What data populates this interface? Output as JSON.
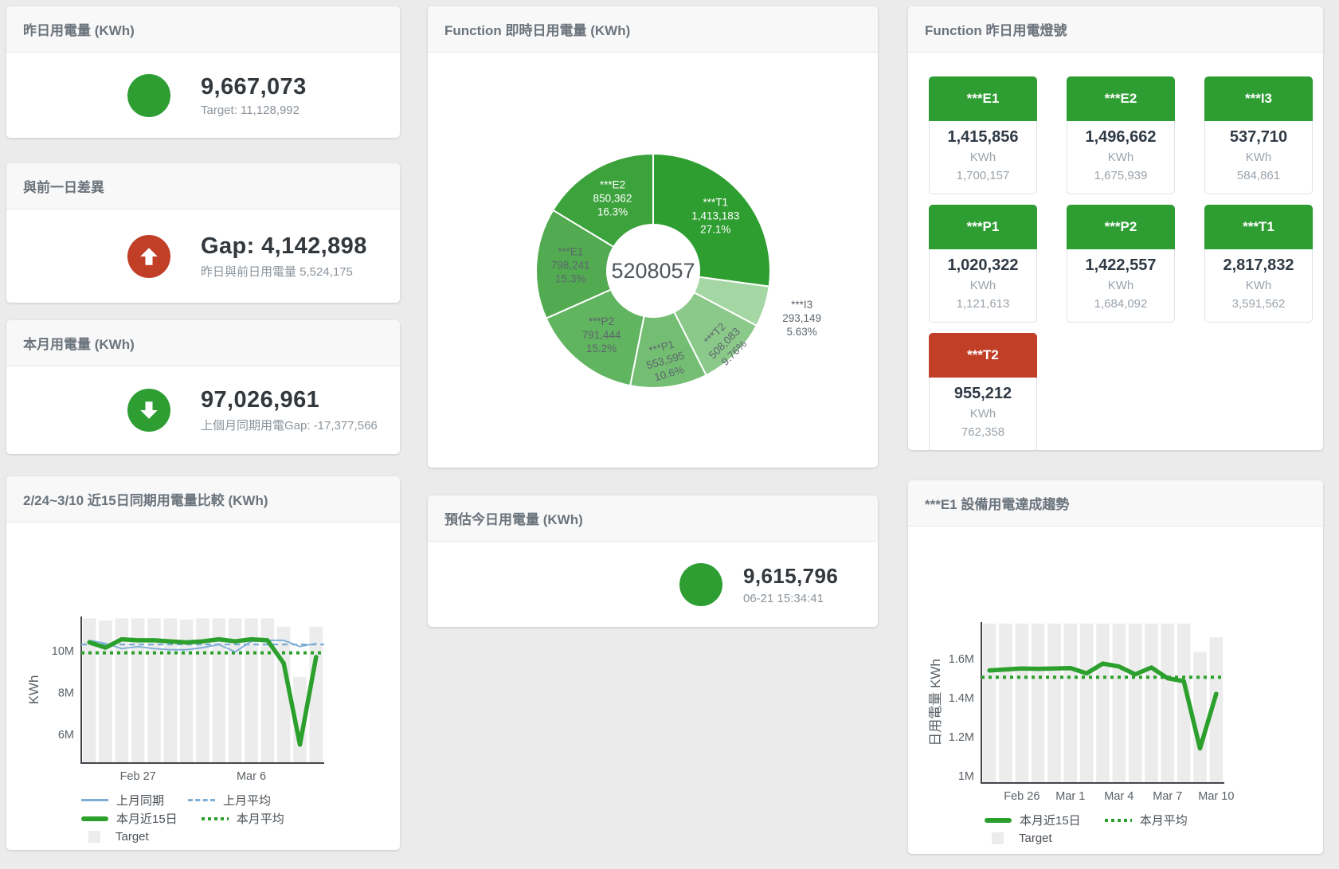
{
  "page": {
    "bg": "#ebebeb"
  },
  "colors": {
    "green": "#2e9e33",
    "red": "#c13e27",
    "blue_line": "#7badd6",
    "chart_green": "#2ca02c",
    "target_bar": "#ececec"
  },
  "cards": {
    "yesterday": {
      "title": "昨日用電量 (KWh)",
      "value": "9,667,073",
      "subtext": "Target: 11,128,992",
      "indicator": "green-circle"
    },
    "diff": {
      "title": "與前一日差異",
      "value": "Gap: 4,142,898",
      "subtext": "昨日與前日用電量 5,524,175",
      "indicator": "red-arrow-up"
    },
    "month": {
      "title": "本月用電量 (KWh)",
      "value": "97,026,961",
      "subtext": "上個月同期用電Gap: -17,377,566",
      "indicator": "green-arrow-down"
    },
    "estimate": {
      "title": "預估今日用電量 (KWh)",
      "value": "9,615,796",
      "subtext": "06-21 15:34:41",
      "indicator": "green-circle"
    },
    "lights": {
      "title": "Function 昨日用電燈號",
      "tiles": [
        {
          "name": "***E1",
          "value": "1,415,856",
          "unit": "KWh",
          "target": "1,700,157",
          "status": "green"
        },
        {
          "name": "***E2",
          "value": "1,496,662",
          "unit": "KWh",
          "target": "1,675,939",
          "status": "green"
        },
        {
          "name": "***I3",
          "value": "537,710",
          "unit": "KWh",
          "target": "584,861",
          "status": "green"
        },
        {
          "name": "***P1",
          "value": "1,020,322",
          "unit": "KWh",
          "target": "1,121,613",
          "status": "green"
        },
        {
          "name": "***P2",
          "value": "1,422,557",
          "unit": "KWh",
          "target": "1,684,092",
          "status": "green"
        },
        {
          "name": "***T1",
          "value": "2,817,832",
          "unit": "KWh",
          "target": "3,591,562",
          "status": "green"
        },
        {
          "name": "***T2",
          "value": "955,212",
          "unit": "KWh",
          "target": "762,358",
          "status": "red"
        }
      ]
    }
  },
  "chart_data": [
    {
      "type": "pie",
      "title": "Function 即時日用電量 (KWh)",
      "center_total": "5208057",
      "legend_position": "none",
      "slices": [
        {
          "label": "***T1",
          "value": 1413183,
          "value_label": "1,413,183",
          "pct": "27.1%",
          "color": "#2f9e31",
          "text_color": "#ffffff",
          "label_radius": 104,
          "rotate": 0
        },
        {
          "label": "***I3",
          "value": 293149,
          "value_label": "293,149",
          "pct": "5.63%",
          "color": "#a5d7a4",
          "text_color": "#5d666d",
          "label_radius": 196,
          "rotate": 0,
          "outside": true
        },
        {
          "label": "***T2",
          "value": 508083,
          "value_label": "508,083",
          "pct": "9.76%",
          "color": "#8bc98a",
          "text_color": "#5d666d",
          "label_radius": 128,
          "rotate": -45
        },
        {
          "label": "***P1",
          "value": 553595,
          "value_label": "553,595",
          "pct": "10.6%",
          "color": "#74be73",
          "text_color": "#5d666d",
          "label_radius": 114,
          "rotate": -16
        },
        {
          "label": "***P2",
          "value": 791444,
          "value_label": "791,444",
          "pct": "15.2%",
          "color": "#61b460",
          "text_color": "#5d666d",
          "label_radius": 104,
          "rotate": 0
        },
        {
          "label": "***E1",
          "value": 798241,
          "value_label": "798,241",
          "pct": "15.3%",
          "color": "#52ab51",
          "text_color": "#5d666d",
          "label_radius": 104,
          "rotate": 0
        },
        {
          "label": "***E2",
          "value": 850362,
          "value_label": "850,362",
          "pct": "16.3%",
          "color": "#3ca23c",
          "text_color": "#ffffff",
          "label_radius": 104,
          "rotate": 0
        }
      ]
    },
    {
      "type": "line",
      "title": "2/24~3/10 近15日同期用電量比較 (KWh)",
      "ylabel": "KWh",
      "unit": "M",
      "ylim": [
        4.6,
        12.1
      ],
      "grid": false,
      "legend_position": "bottom",
      "yticks": [
        {
          "v": 6,
          "label": "6M"
        },
        {
          "v": 8,
          "label": "8M"
        },
        {
          "v": 10,
          "label": "10M"
        }
      ],
      "xticks": [
        {
          "i": 3,
          "label": "Feb 27"
        },
        {
          "i": 10,
          "label": "Mar 6"
        }
      ],
      "target": {
        "name": "Target",
        "color": "#ececec",
        "values": [
          11.55,
          11.45,
          11.55,
          11.55,
          11.55,
          11.55,
          11.5,
          11.55,
          11.55,
          11.55,
          11.55,
          11.55,
          11.15,
          8.75,
          11.15
        ]
      },
      "series": [
        {
          "name": "上月同期",
          "style": "solid",
          "color": "#7badd6",
          "width": 1.8,
          "values": [
            10.5,
            10.35,
            10.1,
            10.2,
            10.1,
            10.05,
            10.05,
            10.15,
            10.3,
            9.95,
            10.45,
            10.5,
            10.5,
            10.2,
            10.35
          ]
        },
        {
          "name": "上月平均",
          "style": "dashed",
          "color": "#7badd6",
          "width": 2.2,
          "avg": 10.3
        },
        {
          "name": "本月近15日",
          "style": "solid",
          "color": "#2ca02c",
          "width": 5.5,
          "values": [
            10.4,
            10.15,
            10.55,
            10.5,
            10.5,
            10.45,
            10.4,
            10.45,
            10.55,
            10.45,
            10.55,
            10.5,
            9.4,
            5.5,
            9.7
          ]
        },
        {
          "name": "本月平均",
          "style": "dotted",
          "color": "#2ca02c",
          "width": 4,
          "avg": 9.9
        }
      ]
    },
    {
      "type": "line",
      "title": "***E1 設備用電達成趨勢",
      "ylabel": "日用電量 KWh",
      "unit": "M",
      "ylim": [
        0.96,
        1.78
      ],
      "grid": false,
      "legend_position": "bottom",
      "yticks": [
        {
          "v": 1,
          "label": "1M"
        },
        {
          "v": 1.2,
          "label": "1.2M"
        },
        {
          "v": 1.4,
          "label": "1.4M"
        },
        {
          "v": 1.6,
          "label": "1.6M"
        }
      ],
      "xticks": [
        {
          "i": 2,
          "label": "Feb 26"
        },
        {
          "i": 5,
          "label": "Mar 1"
        },
        {
          "i": 8,
          "label": "Mar 4"
        },
        {
          "i": 11,
          "label": "Mar 7"
        },
        {
          "i": 14,
          "label": "Mar 10"
        }
      ],
      "target": {
        "name": "Target",
        "color": "#ececec",
        "values": [
          1.78,
          1.78,
          1.78,
          1.78,
          1.78,
          1.78,
          1.78,
          1.78,
          1.78,
          1.78,
          1.78,
          1.78,
          1.78,
          1.635,
          1.71
        ]
      },
      "series": [
        {
          "name": "本月近15日",
          "style": "solid",
          "color": "#2ca02c",
          "width": 5.5,
          "values": [
            1.54,
            1.545,
            1.55,
            1.548,
            1.55,
            1.552,
            1.525,
            1.575,
            1.56,
            1.52,
            1.555,
            1.5,
            1.485,
            1.14,
            1.42
          ]
        },
        {
          "name": "本月平均",
          "style": "dotted",
          "color": "#2ca02c",
          "width": 4,
          "avg": 1.505
        }
      ]
    }
  ]
}
